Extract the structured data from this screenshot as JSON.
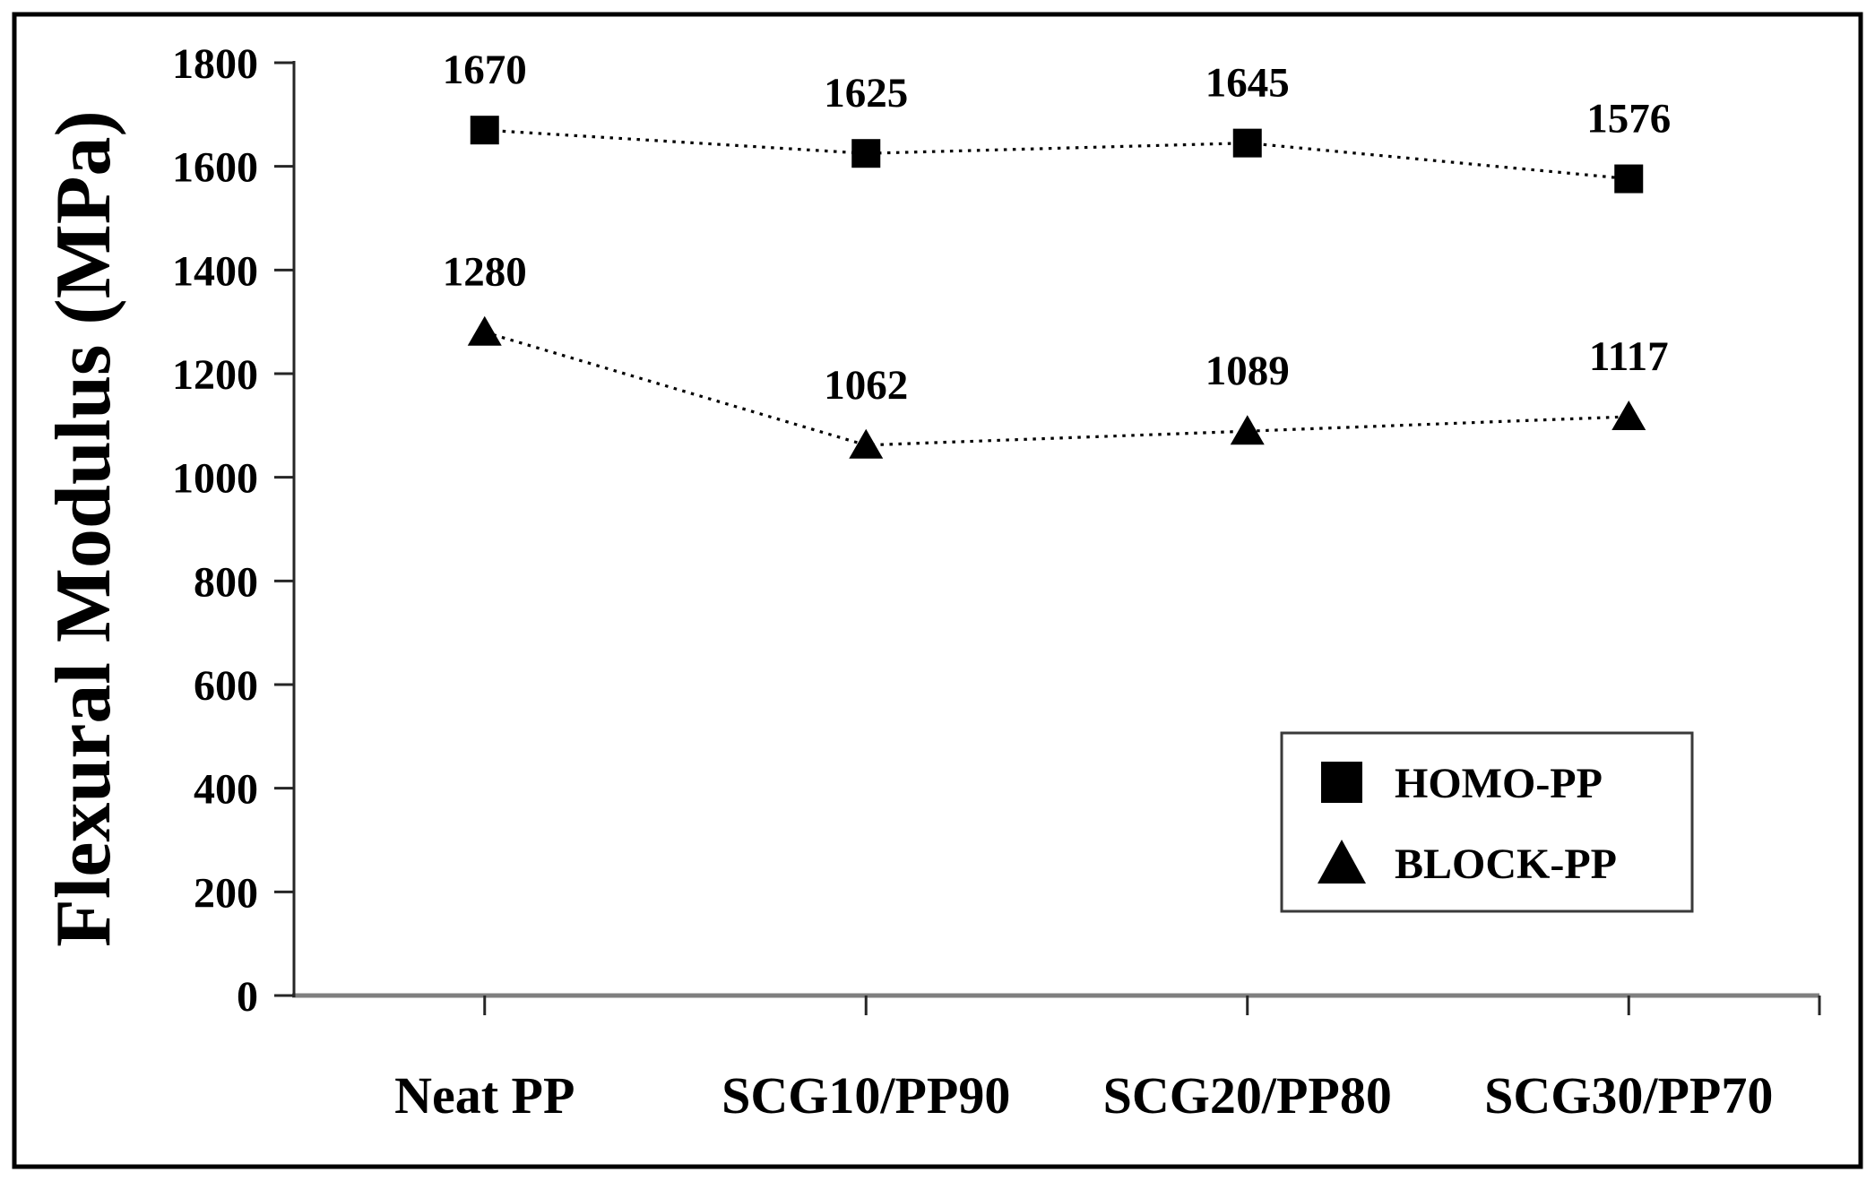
{
  "figure": {
    "description": "Line chart of flexural modulus versus SCG/PP composition"
  },
  "chart_data": {
    "type": "line",
    "title": "",
    "xlabel": "",
    "ylabel": "Flexural Modulus (MPa)",
    "categories": [
      "Neat PP",
      "SCG10/PP90",
      "SCG20/PP80",
      "SCG30/PP70"
    ],
    "series": [
      {
        "name": "HOMO-PP",
        "marker": "square",
        "values": [
          1670,
          1625,
          1645,
          1576
        ]
      },
      {
        "name": "BLOCK-PP",
        "marker": "triangle",
        "values": [
          1280,
          1062,
          1089,
          1117
        ]
      }
    ],
    "ylim": [
      0,
      1800
    ],
    "y_ticks": [
      0,
      200,
      400,
      600,
      800,
      1000,
      1200,
      1400,
      1600,
      1800
    ],
    "grid": false,
    "data_labels": true,
    "line_style": "dotted",
    "legend_position": "inside-lower-right",
    "colors": {
      "series": "#000000",
      "x_axis_line": "#7f7f7f",
      "y_axis_line": "#262626",
      "tick": "#262626",
      "legend_border": "#3a3a3a",
      "figure_border": "#000000",
      "background": "#ffffff"
    }
  }
}
